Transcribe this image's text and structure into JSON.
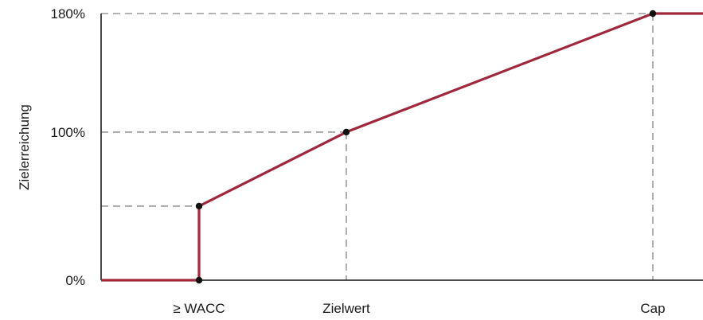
{
  "chart_data": {
    "type": "line",
    "title": "",
    "xlabel": "",
    "ylabel": "Zielerreichung",
    "y_ticks": [
      "0%",
      "100%",
      "180%"
    ],
    "x_ticks": [
      "≥ WACC",
      "Zielwert",
      "Cap"
    ],
    "series": [
      {
        "x": [
          "",
          "≥ WACC",
          "≥ WACC",
          "Zielwert",
          "Cap",
          ""
        ],
        "y": [
          0,
          0,
          50,
          100,
          180,
          180
        ]
      }
    ],
    "points": [
      {
        "x": "≥ WACC",
        "y": 0
      },
      {
        "x": "≥ WACC",
        "y": 50
      },
      {
        "x": "Zielwert",
        "y": 100
      },
      {
        "x": "Cap",
        "y": 180
      }
    ],
    "reference_lines": [
      {
        "y": 50
      },
      {
        "y": 100
      },
      {
        "y": 180
      },
      {
        "x": "Zielwert"
      },
      {
        "x": "Cap"
      }
    ],
    "ylim": [
      0,
      180
    ],
    "grid": false,
    "colors": {
      "line": "#a0283c",
      "guide": "#999999",
      "axis": "#333333",
      "point": "#111111"
    }
  }
}
